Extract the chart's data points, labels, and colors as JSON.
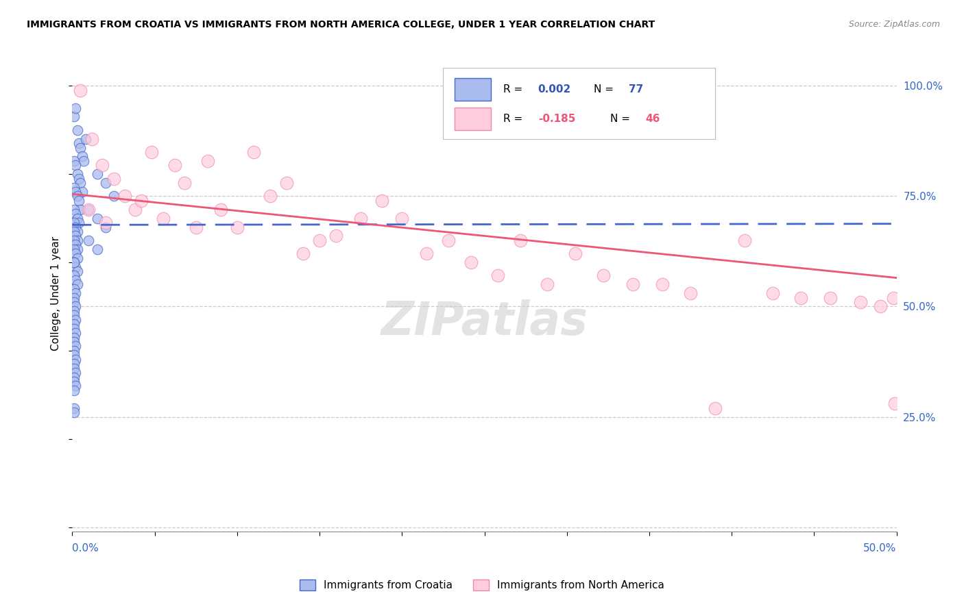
{
  "title": "IMMIGRANTS FROM CROATIA VS IMMIGRANTS FROM NORTH AMERICA COLLEGE, UNDER 1 YEAR CORRELATION CHART",
  "source": "Source: ZipAtlas.com",
  "ylabel": "College, Under 1 year",
  "xlim": [
    0.0,
    0.5
  ],
  "ylim": [
    -0.01,
    1.07
  ],
  "yticks": [
    0.0,
    0.25,
    0.5,
    0.75,
    1.0
  ],
  "ytick_labels": [
    "",
    "25.0%",
    "50.0%",
    "75.0%",
    "100.0%"
  ],
  "xtick_positions": [
    0.0,
    0.05,
    0.1,
    0.15,
    0.2,
    0.25,
    0.3,
    0.35,
    0.4,
    0.45,
    0.5
  ],
  "blue_face": "#AABBEE",
  "blue_edge": "#4466CC",
  "pink_face": "#FFCCDD",
  "pink_edge": "#EE88AA",
  "blue_line_color": "#4466CC",
  "pink_line_color": "#EE5577",
  "legend_R_blue_color": "#3355BB",
  "legend_R_pink_color": "#EE5577",
  "blue_line_intercept": 0.685,
  "blue_line_slope": 0.005,
  "pink_line_intercept": 0.755,
  "pink_line_slope": -0.38,
  "blue_scatter_x": [
    0.001,
    0.002,
    0.003,
    0.004,
    0.005,
    0.006,
    0.007,
    0.008,
    0.001,
    0.002,
    0.003,
    0.004,
    0.005,
    0.006,
    0.001,
    0.002,
    0.003,
    0.004,
    0.005,
    0.001,
    0.002,
    0.003,
    0.004,
    0.001,
    0.002,
    0.003,
    0.001,
    0.002,
    0.003,
    0.001,
    0.002,
    0.003,
    0.001,
    0.002,
    0.003,
    0.001,
    0.002,
    0.003,
    0.001,
    0.002,
    0.003,
    0.001,
    0.002,
    0.001,
    0.001,
    0.002,
    0.001,
    0.001,
    0.002,
    0.001,
    0.001,
    0.002,
    0.001,
    0.001,
    0.002,
    0.001,
    0.001,
    0.002,
    0.001,
    0.001,
    0.002,
    0.001,
    0.001,
    0.002,
    0.001,
    0.015,
    0.02,
    0.025,
    0.01,
    0.015,
    0.02,
    0.01,
    0.015,
    0.001,
    0.001,
    0.001
  ],
  "blue_scatter_y": [
    0.93,
    0.95,
    0.9,
    0.87,
    0.86,
    0.84,
    0.83,
    0.88,
    0.83,
    0.82,
    0.8,
    0.79,
    0.78,
    0.76,
    0.77,
    0.76,
    0.75,
    0.74,
    0.72,
    0.72,
    0.71,
    0.7,
    0.69,
    0.69,
    0.68,
    0.67,
    0.67,
    0.66,
    0.65,
    0.65,
    0.64,
    0.63,
    0.63,
    0.62,
    0.61,
    0.6,
    0.59,
    0.58,
    0.57,
    0.56,
    0.55,
    0.54,
    0.53,
    0.52,
    0.51,
    0.5,
    0.49,
    0.48,
    0.47,
    0.46,
    0.45,
    0.44,
    0.43,
    0.42,
    0.41,
    0.4,
    0.39,
    0.38,
    0.37,
    0.36,
    0.35,
    0.34,
    0.33,
    0.32,
    0.31,
    0.8,
    0.78,
    0.75,
    0.72,
    0.7,
    0.68,
    0.65,
    0.63,
    0.6,
    0.27,
    0.26
  ],
  "pink_scatter_x": [
    0.005,
    0.012,
    0.018,
    0.025,
    0.032,
    0.038,
    0.042,
    0.048,
    0.055,
    0.062,
    0.068,
    0.075,
    0.082,
    0.09,
    0.1,
    0.11,
    0.12,
    0.13,
    0.14,
    0.15,
    0.16,
    0.175,
    0.188,
    0.2,
    0.215,
    0.228,
    0.242,
    0.258,
    0.272,
    0.288,
    0.305,
    0.322,
    0.34,
    0.358,
    0.375,
    0.39,
    0.01,
    0.02,
    0.408,
    0.425,
    0.442,
    0.46,
    0.478,
    0.49,
    0.498,
    0.499
  ],
  "pink_scatter_y": [
    0.99,
    0.88,
    0.82,
    0.79,
    0.75,
    0.72,
    0.74,
    0.85,
    0.7,
    0.82,
    0.78,
    0.68,
    0.83,
    0.72,
    0.68,
    0.85,
    0.75,
    0.78,
    0.62,
    0.65,
    0.66,
    0.7,
    0.74,
    0.7,
    0.62,
    0.65,
    0.6,
    0.57,
    0.65,
    0.55,
    0.62,
    0.57,
    0.55,
    0.55,
    0.53,
    0.27,
    0.72,
    0.69,
    0.65,
    0.53,
    0.52,
    0.52,
    0.51,
    0.5,
    0.52,
    0.28
  ]
}
